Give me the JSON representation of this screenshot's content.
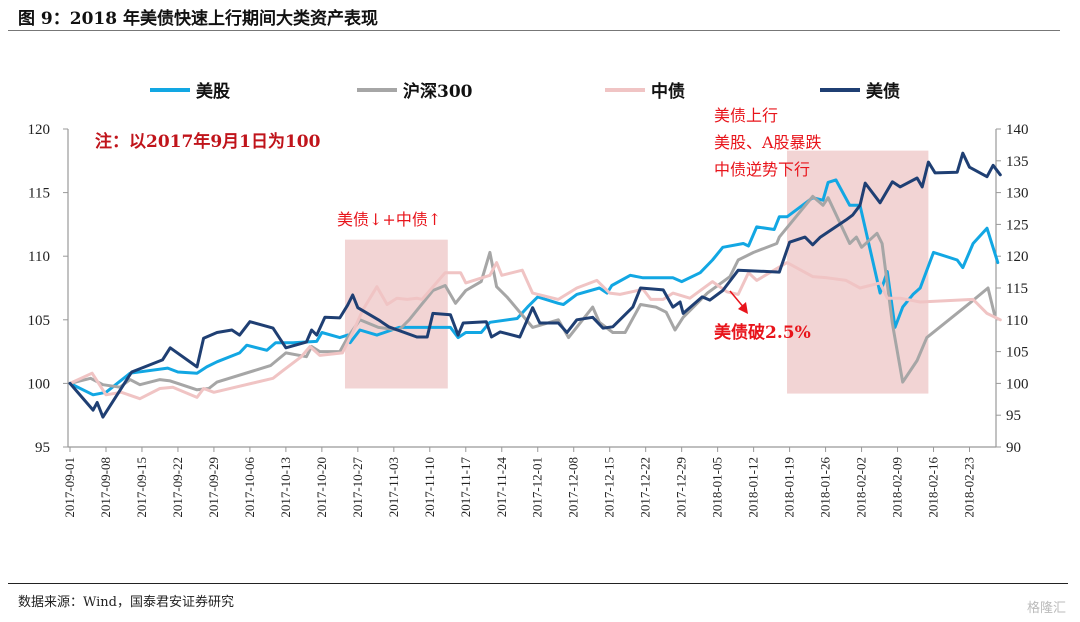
{
  "header": {
    "title": "图 9：2018 年美债快速上行期间大类资产表现"
  },
  "footer": {
    "source": "数据来源：Wind，国泰君安证券研究",
    "watermark": "格隆汇"
  },
  "chart_data": {
    "type": "line",
    "title": "2018 年美债快速上行期间大类资产表现",
    "note": "注：以2017年9月1日为100",
    "x_start_date": "2017-09-01",
    "x_unit": "days since 2017-09-01",
    "x_range": [
      0,
      181
    ],
    "x_tick_labels": [
      "2017-09-01",
      "2017-09-08",
      "2017-09-15",
      "2017-09-22",
      "2017-09-29",
      "2017-10-06",
      "2017-10-13",
      "2017-10-20",
      "2017-10-27",
      "2017-11-03",
      "2017-11-10",
      "2017-11-17",
      "2017-11-24",
      "2017-12-01",
      "2017-12-08",
      "2017-12-15",
      "2017-12-22",
      "2017-12-29",
      "2018-01-05",
      "2018-01-12",
      "2018-01-19",
      "2018-01-26",
      "2018-02-02",
      "2018-02-09",
      "2018-02-16",
      "2018-02-23"
    ],
    "y_left": {
      "ylim": [
        95,
        120
      ],
      "ticks": [
        "95",
        "100",
        "105",
        "110",
        "115",
        "120"
      ]
    },
    "y_right": {
      "ylim": [
        90,
        140
      ],
      "ticks": [
        "90",
        "95",
        "100",
        "105",
        "110",
        "115",
        "120",
        "125",
        "130",
        "135",
        "140"
      ]
    },
    "legend_position": "top",
    "grid": false,
    "series": [
      {
        "name": "美股",
        "axis": "left",
        "color": "#12a7e3",
        "points": [
          [
            0,
            100
          ],
          [
            4.5,
            99.1
          ],
          [
            7,
            99.3
          ],
          [
            11.7,
            100.8
          ],
          [
            19,
            101.2
          ],
          [
            21,
            100.9
          ],
          [
            24.7,
            100.8
          ],
          [
            26.6,
            101.3
          ],
          [
            28.6,
            101.7
          ],
          [
            33,
            102.4
          ],
          [
            34.4,
            103
          ],
          [
            38.3,
            102.6
          ],
          [
            40,
            103.2
          ],
          [
            43.4,
            103.2
          ],
          [
            48,
            103.3
          ],
          [
            49,
            104
          ],
          [
            52.5,
            103.6
          ],
          [
            54,
            103.8
          ],
          [
            54.5,
            103.2
          ],
          [
            56.4,
            104.2
          ],
          [
            59.7,
            103.8
          ],
          [
            64,
            104.4
          ],
          [
            68.7,
            104.4
          ],
          [
            74,
            104.4
          ],
          [
            75.5,
            103.6
          ],
          [
            77,
            104
          ],
          [
            80,
            104
          ],
          [
            81.7,
            104.8
          ],
          [
            87,
            105.1
          ],
          [
            89,
            106
          ],
          [
            91,
            106.8
          ],
          [
            95,
            106.3
          ],
          [
            96,
            106.2
          ],
          [
            98.6,
            107
          ],
          [
            103,
            107.5
          ],
          [
            104.5,
            107.1
          ],
          [
            105.4,
            107.7
          ],
          [
            109,
            108.5
          ],
          [
            111.5,
            108.3
          ],
          [
            117.3,
            108.3
          ],
          [
            119,
            108
          ],
          [
            122.6,
            108.7
          ],
          [
            125,
            109.7
          ],
          [
            127,
            110.7
          ],
          [
            131,
            111
          ],
          [
            132,
            110.8
          ],
          [
            133.6,
            112.3
          ],
          [
            137,
            112.1
          ],
          [
            138,
            113.1
          ],
          [
            139.5,
            113.1
          ],
          [
            144.5,
            114.6
          ],
          [
            146.5,
            114.4
          ],
          [
            147.5,
            115.8
          ],
          [
            149,
            116
          ],
          [
            151.7,
            114
          ],
          [
            153.7,
            114
          ],
          [
            157.6,
            107.1
          ],
          [
            159,
            108.8
          ],
          [
            160.5,
            104.4
          ],
          [
            162,
            106
          ],
          [
            164,
            107
          ],
          [
            165.4,
            107.5
          ],
          [
            168,
            110.3
          ],
          [
            172.6,
            109.7
          ],
          [
            173.7,
            109.1
          ],
          [
            175.7,
            111
          ],
          [
            178.4,
            112.2
          ],
          [
            180.5,
            109.5
          ]
        ]
      },
      {
        "name": "沪深300",
        "axis": "left",
        "color": "#a6a6a6",
        "points": [
          [
            0,
            100
          ],
          [
            4,
            100.4
          ],
          [
            6.4,
            99.9
          ],
          [
            9.7,
            99.7
          ],
          [
            11.7,
            100.3
          ],
          [
            13.6,
            99.9
          ],
          [
            17.5,
            100.3
          ],
          [
            19.5,
            100.2
          ],
          [
            24.7,
            99.5
          ],
          [
            27,
            99.6
          ],
          [
            28.6,
            100.1
          ],
          [
            39,
            101.4
          ],
          [
            42,
            102.4
          ],
          [
            46,
            102.1
          ],
          [
            47,
            102.9
          ],
          [
            48.6,
            102.5
          ],
          [
            52.5,
            102.5
          ],
          [
            54,
            103.6
          ],
          [
            56.4,
            105
          ],
          [
            60,
            104.4
          ],
          [
            64,
            104.2
          ],
          [
            66,
            105
          ],
          [
            68,
            106
          ],
          [
            70.6,
            107.3
          ],
          [
            73,
            107.7
          ],
          [
            75,
            106.3
          ],
          [
            77,
            107.3
          ],
          [
            80,
            108
          ],
          [
            81.7,
            110.3
          ],
          [
            83,
            107.6
          ],
          [
            85,
            106.8
          ],
          [
            90,
            104.4
          ],
          [
            95,
            105
          ],
          [
            97,
            103.6
          ],
          [
            101.7,
            106
          ],
          [
            103,
            104.8
          ],
          [
            105.6,
            104
          ],
          [
            108,
            104
          ],
          [
            111,
            106.2
          ],
          [
            114,
            106
          ],
          [
            116,
            105.6
          ],
          [
            117.7,
            104.2
          ],
          [
            119.3,
            105.2
          ],
          [
            124,
            107.1
          ],
          [
            128.4,
            108.4
          ],
          [
            130,
            109.7
          ],
          [
            133,
            110.3
          ],
          [
            137.5,
            111
          ],
          [
            138,
            111.5
          ],
          [
            144.5,
            114.7
          ],
          [
            146.5,
            114
          ],
          [
            147.5,
            114.6
          ],
          [
            151.7,
            111
          ],
          [
            153,
            111.5
          ],
          [
            154,
            110.7
          ],
          [
            157,
            111.8
          ],
          [
            158,
            111
          ],
          [
            160,
            104.7
          ],
          [
            162,
            100.1
          ],
          [
            164.8,
            101.8
          ],
          [
            166.7,
            103.6
          ],
          [
            175,
            106.3
          ],
          [
            178.6,
            107.5
          ],
          [
            180,
            105.2
          ]
        ]
      },
      {
        "name": "中债",
        "axis": "left",
        "color": "#f0c4c4",
        "points": [
          [
            0,
            100
          ],
          [
            4.3,
            100.8
          ],
          [
            7,
            99.1
          ],
          [
            10,
            99.3
          ],
          [
            13.6,
            98.8
          ],
          [
            17.5,
            99.6
          ],
          [
            20,
            99.7
          ],
          [
            24.7,
            98.9
          ],
          [
            26,
            99.6
          ],
          [
            28,
            99.3
          ],
          [
            39.5,
            100.4
          ],
          [
            41.4,
            101
          ],
          [
            45,
            102.1
          ],
          [
            46.7,
            102.9
          ],
          [
            48.6,
            102.2
          ],
          [
            53,
            102.4
          ],
          [
            55,
            104
          ],
          [
            57,
            105.8
          ],
          [
            59.7,
            107.6
          ],
          [
            61.7,
            106.2
          ],
          [
            63.6,
            106.7
          ],
          [
            65.6,
            106.6
          ],
          [
            67.5,
            106.7
          ],
          [
            68.5,
            106.6
          ],
          [
            73,
            108.7
          ],
          [
            76,
            108.7
          ],
          [
            77,
            107.9
          ],
          [
            81.7,
            108.5
          ],
          [
            83,
            109.5
          ],
          [
            84,
            108.5
          ],
          [
            88,
            108.9
          ],
          [
            90,
            107.1
          ],
          [
            95,
            106.6
          ],
          [
            98.6,
            107.5
          ],
          [
            102.5,
            108.1
          ],
          [
            105,
            107.1
          ],
          [
            107,
            107
          ],
          [
            111.5,
            107.4
          ],
          [
            113,
            106.6
          ],
          [
            115.4,
            106.6
          ],
          [
            117.3,
            107.1
          ],
          [
            120.6,
            106.7
          ],
          [
            125,
            108
          ],
          [
            127.8,
            107.2
          ],
          [
            130,
            107
          ],
          [
            132,
            108.7
          ],
          [
            133.6,
            108.1
          ],
          [
            139.5,
            109.5
          ],
          [
            144.5,
            108.4
          ],
          [
            147.3,
            108.3
          ],
          [
            151,
            108.1
          ],
          [
            153.7,
            107.5
          ],
          [
            157.6,
            107.9
          ],
          [
            159,
            106.7
          ],
          [
            161.5,
            106.7
          ],
          [
            165.4,
            106.4
          ],
          [
            175.7,
            106.6
          ],
          [
            178.4,
            105.5
          ],
          [
            181,
            105
          ]
        ]
      },
      {
        "name": "美债",
        "axis": "right",
        "color": "#1f3f73",
        "points": [
          [
            0,
            100
          ],
          [
            4.5,
            95.8
          ],
          [
            5.3,
            97
          ],
          [
            6.4,
            94.7
          ],
          [
            12,
            101.8
          ],
          [
            18,
            103.7
          ],
          [
            19.5,
            105.6
          ],
          [
            24.7,
            102.6
          ],
          [
            26,
            107.1
          ],
          [
            28.6,
            108
          ],
          [
            31.5,
            108.4
          ],
          [
            33,
            107.6
          ],
          [
            35,
            109.7
          ],
          [
            39.5,
            108.7
          ],
          [
            42,
            105.6
          ],
          [
            46,
            106.5
          ],
          [
            47,
            108.4
          ],
          [
            48,
            107.6
          ],
          [
            49.6,
            110.4
          ],
          [
            52.5,
            110.3
          ],
          [
            54,
            112.3
          ],
          [
            55,
            113.9
          ],
          [
            56,
            111.9
          ],
          [
            60,
            110
          ],
          [
            62,
            108.9
          ],
          [
            67.5,
            107.3
          ],
          [
            69.5,
            107.3
          ],
          [
            70.6,
            111
          ],
          [
            74,
            110.8
          ],
          [
            75.5,
            107.6
          ],
          [
            76.5,
            109.5
          ],
          [
            81,
            109.7
          ],
          [
            82,
            107.3
          ],
          [
            83.7,
            108.1
          ],
          [
            87.5,
            107.3
          ],
          [
            90,
            111.9
          ],
          [
            91.4,
            109.5
          ],
          [
            95,
            109.5
          ],
          [
            96.7,
            108
          ],
          [
            98.6,
            110
          ],
          [
            101.7,
            110.4
          ],
          [
            103.7,
            108.7
          ],
          [
            105.6,
            108.9
          ],
          [
            109.5,
            112
          ],
          [
            111,
            115
          ],
          [
            115.4,
            114.7
          ],
          [
            117.3,
            112
          ],
          [
            118.7,
            112.8
          ],
          [
            119.3,
            111
          ],
          [
            123,
            113.6
          ],
          [
            124.5,
            113.1
          ],
          [
            127,
            114.6
          ],
          [
            130,
            117.8
          ],
          [
            138,
            117.5
          ],
          [
            140,
            122.2
          ],
          [
            143,
            123
          ],
          [
            144.5,
            121.8
          ],
          [
            146,
            123
          ],
          [
            151,
            125.7
          ],
          [
            152.3,
            126.5
          ],
          [
            153.7,
            128
          ],
          [
            154.7,
            131.5
          ],
          [
            157.6,
            128.4
          ],
          [
            160,
            131.7
          ],
          [
            161.5,
            130.9
          ],
          [
            164.8,
            132.3
          ],
          [
            165.8,
            130.9
          ],
          [
            167,
            134.8
          ],
          [
            168.3,
            133.1
          ],
          [
            172.6,
            133.2
          ],
          [
            173.7,
            136.2
          ],
          [
            175,
            134
          ],
          [
            178.4,
            132.5
          ],
          [
            179.6,
            134.3
          ],
          [
            181,
            132.8
          ]
        ]
      }
    ],
    "shaded_regions": [
      {
        "x_range": [
          53.5,
          73.5
        ],
        "y_left_range": [
          99.6,
          111.3
        ],
        "color": "#f2d4d4"
      },
      {
        "x_range": [
          139.5,
          167
        ],
        "y_left_range": [
          99.2,
          118.3
        ],
        "color": "#f2d4d4"
      }
    ],
    "annotations": {
      "region1": "美债↓+中债↑",
      "region2_lines": [
        "美债上行",
        "美股、A股暴跌",
        "中债逆势下行"
      ],
      "breakout": "美债破2.5%"
    }
  }
}
